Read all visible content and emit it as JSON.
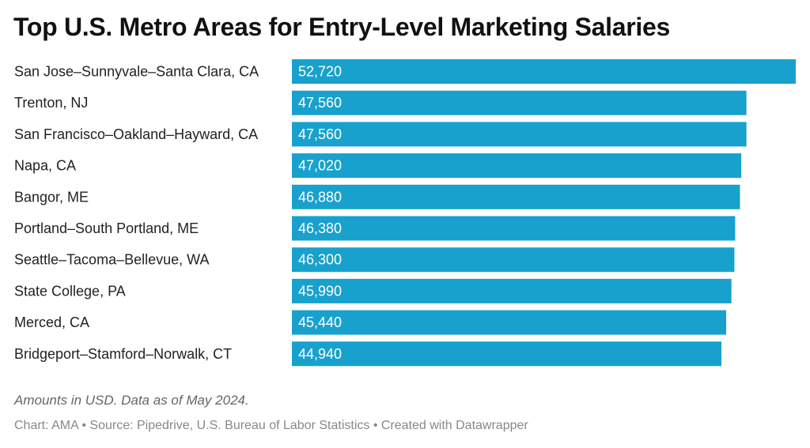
{
  "chart_data": {
    "type": "bar",
    "orientation": "horizontal",
    "title": "Top U.S. Metro Areas for Entry-Level Marketing Salaries",
    "categories": [
      "San Jose–Sunnyvale–Santa Clara, CA",
      "Trenton, NJ",
      "San Francisco–Oakland–Hayward, CA",
      "Napa, CA",
      "Bangor, ME",
      "Portland–South Portland, ME",
      "Seattle–Tacoma–Bellevue, WA",
      "State College, PA",
      "Merced, CA",
      "Bridgeport–Stamford–Norwalk, CT"
    ],
    "values": [
      52720,
      47560,
      47560,
      47020,
      46880,
      46380,
      46300,
      45990,
      45440,
      44940
    ],
    "value_labels": [
      "52,720",
      "47,560",
      "47,560",
      "47,020",
      "46,880",
      "46,380",
      "46,300",
      "45,990",
      "45,440",
      "44,940"
    ],
    "xlim": [
      0,
      52720
    ],
    "grid": false,
    "bar_color": "#18a1cd",
    "label_color": "#ffffff"
  },
  "notes": "Amounts in USD. Data as of May 2024.",
  "footer": "Chart: AMA • Source: Pipedrive, U.S. Bureau of Labor Statistics • Created with Datawrapper"
}
